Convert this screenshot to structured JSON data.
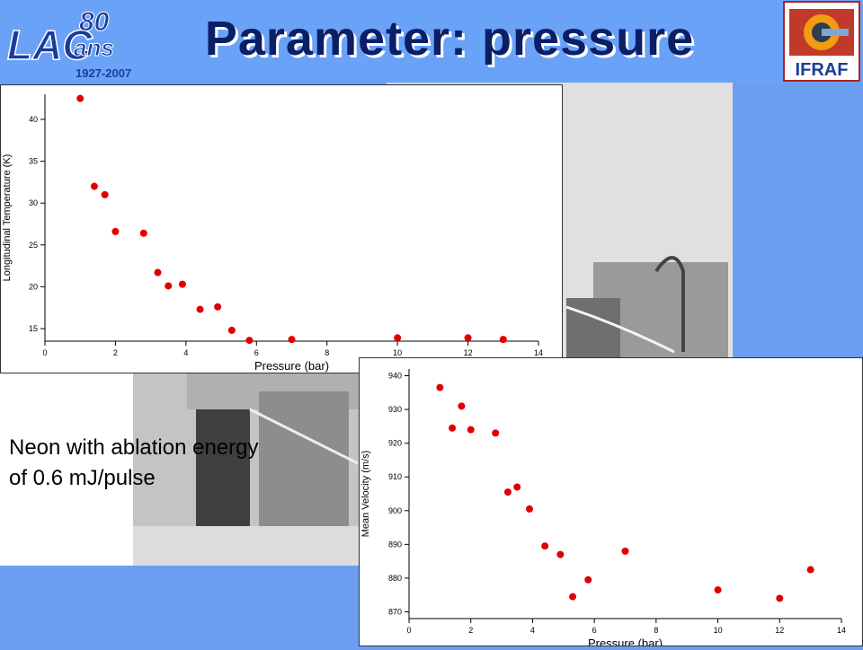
{
  "slide": {
    "title": "Parameter: pressure",
    "caption_line1": "Neon with ablation energy",
    "caption_line2": "of  0.6 mJ/pulse"
  },
  "logos": {
    "left_text": "LAC",
    "left_anniversary": "80",
    "left_ans": "ans",
    "left_years": "1927-2007",
    "right_text": "IFRAF"
  },
  "colors": {
    "title": "#0b1f66",
    "background": "#6aa2f8",
    "marker": "#e00000"
  },
  "chart_data": [
    {
      "type": "scatter",
      "xlabel": "Pressure (bar)",
      "ylabel": "Longitudinal Temperature (K)",
      "xlim": [
        0,
        14
      ],
      "ylim": [
        13.5,
        43
      ],
      "xticks": [
        0,
        2,
        4,
        6,
        8,
        10,
        12,
        14
      ],
      "yticks": [
        15,
        20,
        25,
        30,
        35,
        40
      ],
      "x": [
        1.0,
        1.4,
        1.7,
        2.0,
        2.8,
        3.2,
        3.5,
        3.9,
        4.4,
        4.9,
        5.3,
        5.8,
        7.0,
        10.0,
        12.0,
        13.0
      ],
      "y": [
        42.5,
        32.0,
        31.0,
        26.6,
        26.4,
        21.7,
        20.1,
        20.3,
        17.3,
        17.6,
        14.8,
        13.6,
        13.7,
        13.9,
        13.9,
        13.7
      ]
    },
    {
      "type": "scatter",
      "xlabel": "Pressure (bar)",
      "ylabel": "Mean Velocity (m/s)",
      "xlim": [
        0,
        14
      ],
      "ylim": [
        868,
        942
      ],
      "xticks": [
        0,
        2,
        4,
        6,
        8,
        10,
        12,
        14
      ],
      "yticks": [
        870,
        880,
        890,
        900,
        910,
        920,
        930,
        940
      ],
      "x": [
        1.0,
        1.4,
        1.7,
        2.0,
        2.8,
        3.2,
        3.5,
        3.9,
        4.4,
        4.9,
        5.3,
        5.8,
        7.0,
        10.0,
        12.0,
        13.0
      ],
      "y": [
        936.5,
        924.5,
        931.0,
        924.0,
        923.0,
        905.5,
        907.0,
        900.5,
        889.5,
        887.0,
        874.5,
        879.5,
        888.0,
        876.5,
        874.0,
        882.5
      ]
    }
  ]
}
